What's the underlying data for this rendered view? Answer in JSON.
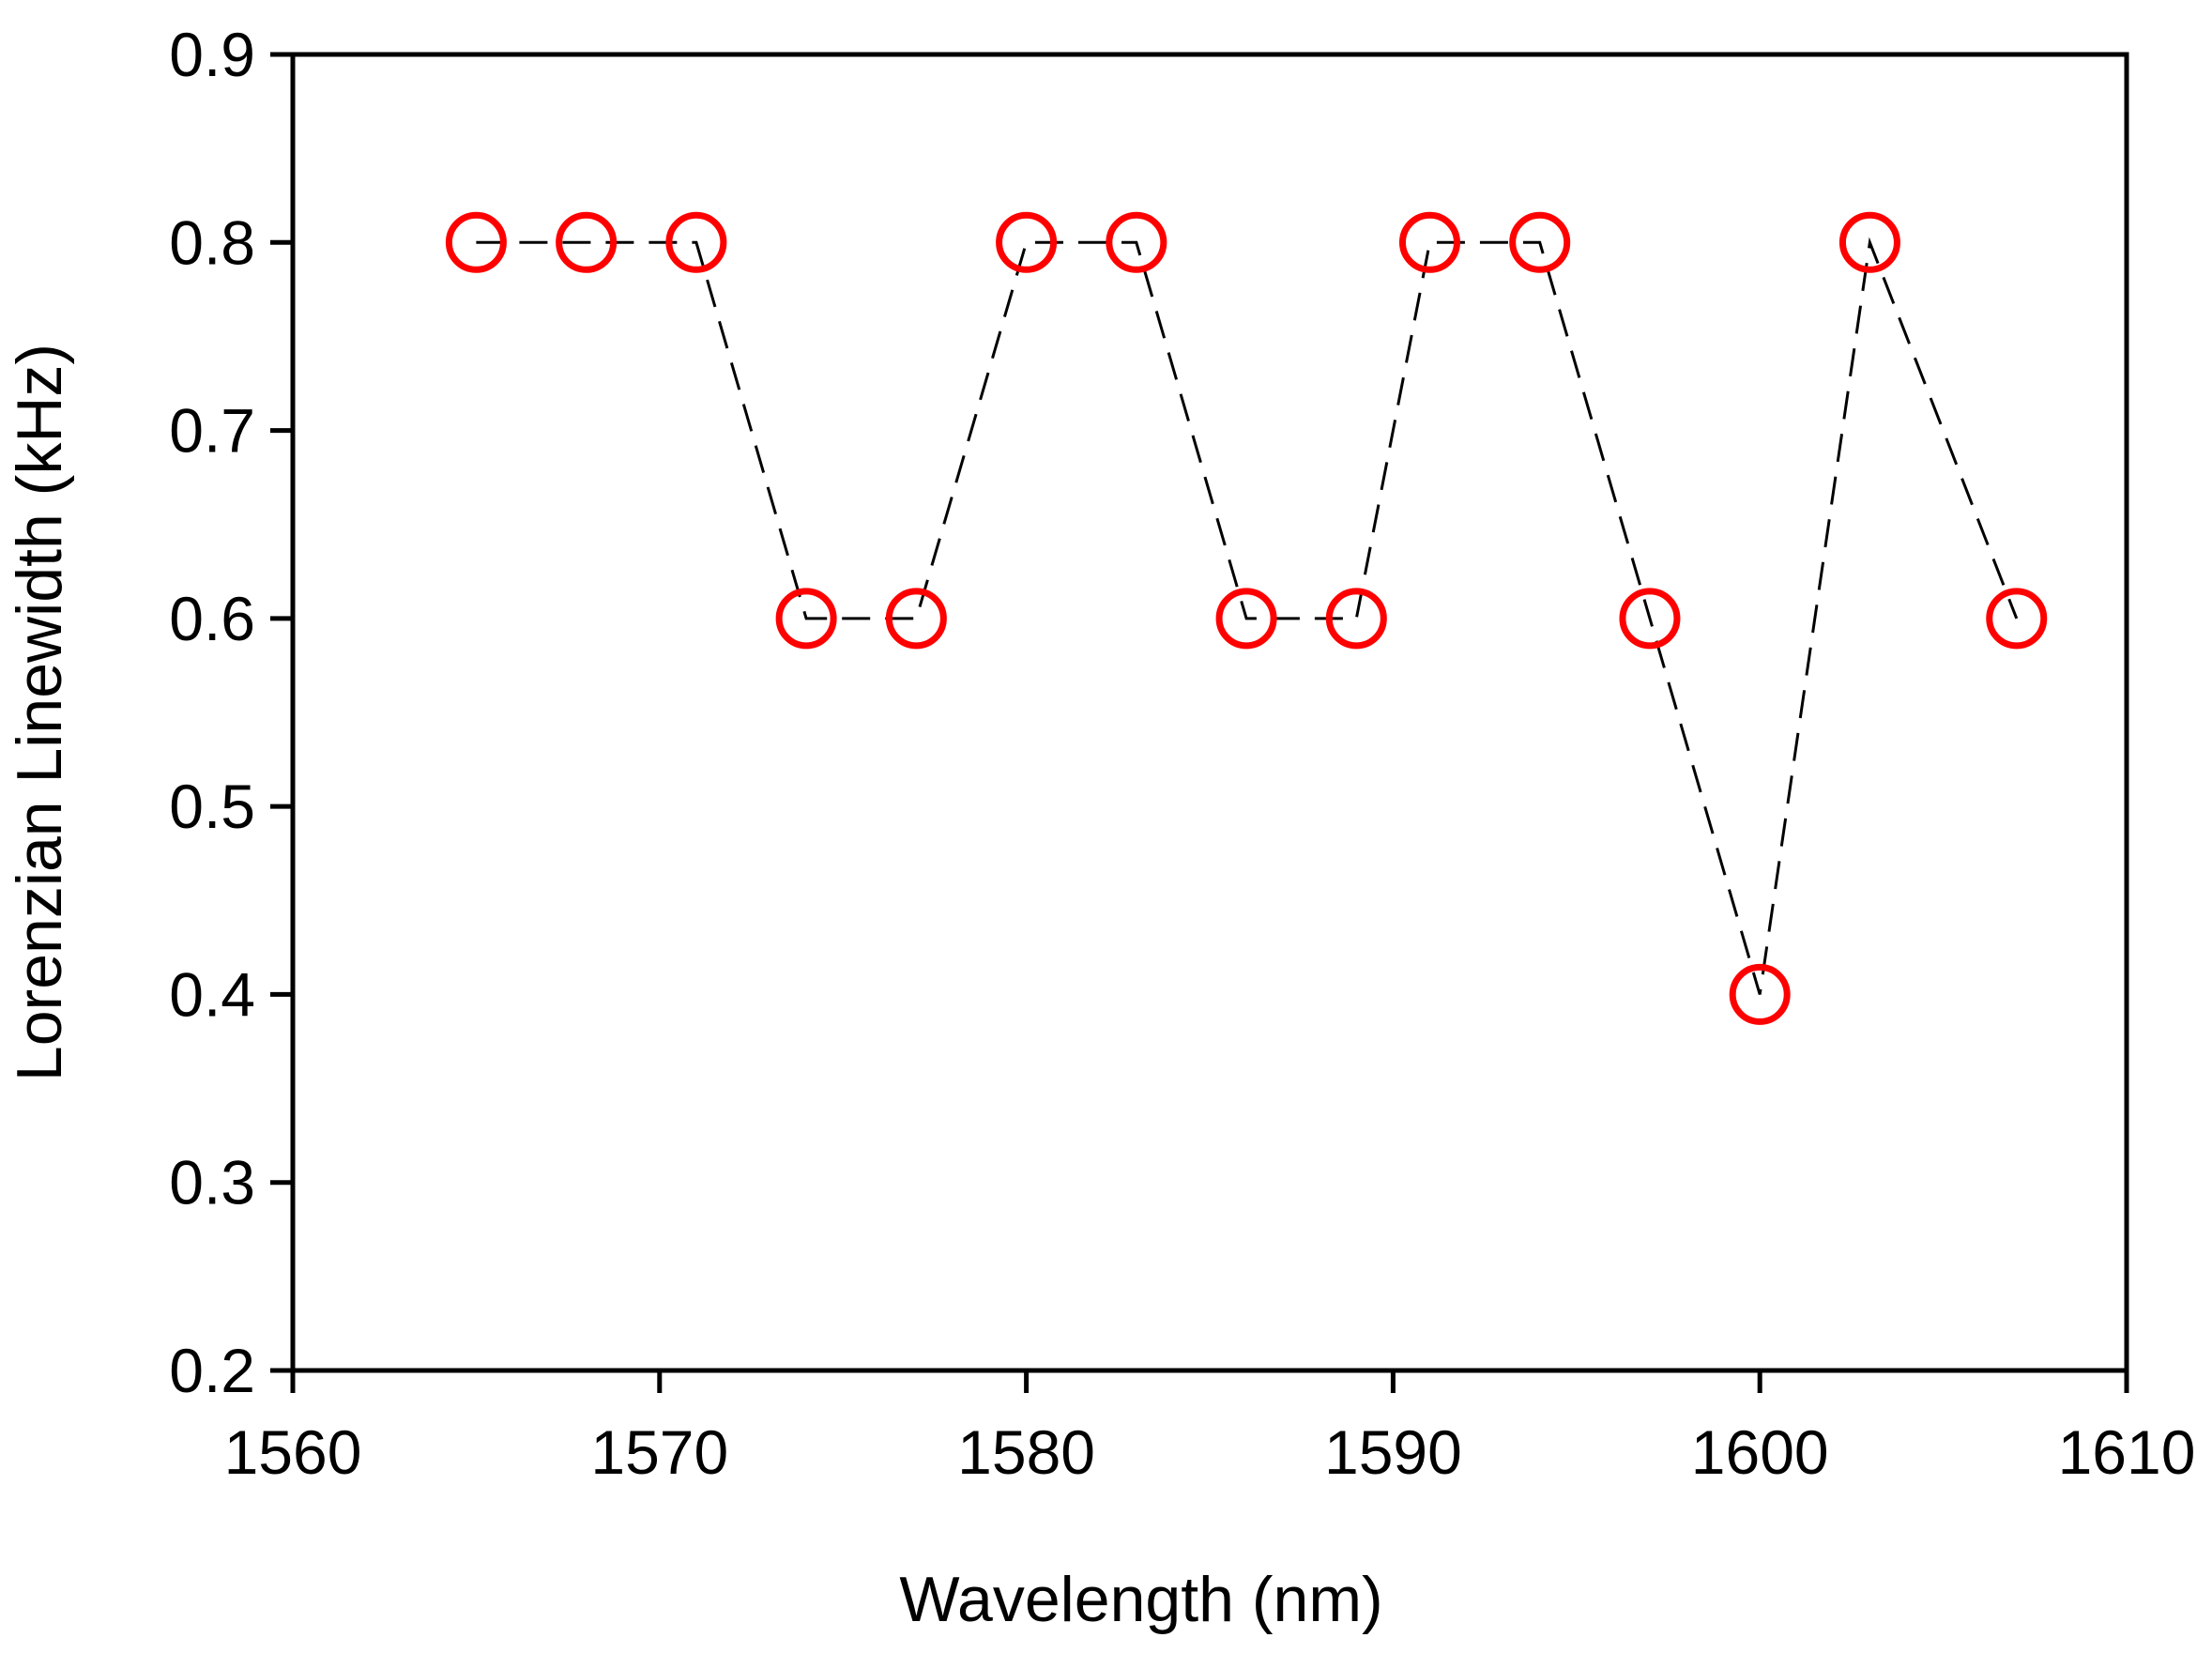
{
  "chart_data": {
    "type": "line",
    "title": "",
    "xlabel": "Wavelength (nm)",
    "ylabel": "Lorenzian Linewidth (kHz)",
    "xlim": [
      1560,
      1610
    ],
    "ylim": [
      0.2,
      0.9
    ],
    "xticks": [
      "1560",
      "1570",
      "1580",
      "1590",
      "1600",
      "1610"
    ],
    "yticks": [
      "0.2",
      "0.3",
      "0.4",
      "0.5",
      "0.6",
      "0.7",
      "0.8",
      "0.9"
    ],
    "grid": false,
    "legend": "none",
    "series": [
      {
        "line_style": "dashed",
        "line_color": "#000000",
        "marker": "open-circle",
        "marker_color": "#ff0000",
        "x": [
          1565,
          1568,
          1571,
          1574,
          1577,
          1580,
          1583,
          1586,
          1589,
          1591,
          1594,
          1597,
          1600,
          1603,
          1607
        ],
        "y": [
          0.8,
          0.8,
          0.8,
          0.6,
          0.6,
          0.8,
          0.8,
          0.6,
          0.6,
          0.8,
          0.8,
          0.6,
          0.4,
          0.8,
          0.6
        ]
      }
    ]
  }
}
